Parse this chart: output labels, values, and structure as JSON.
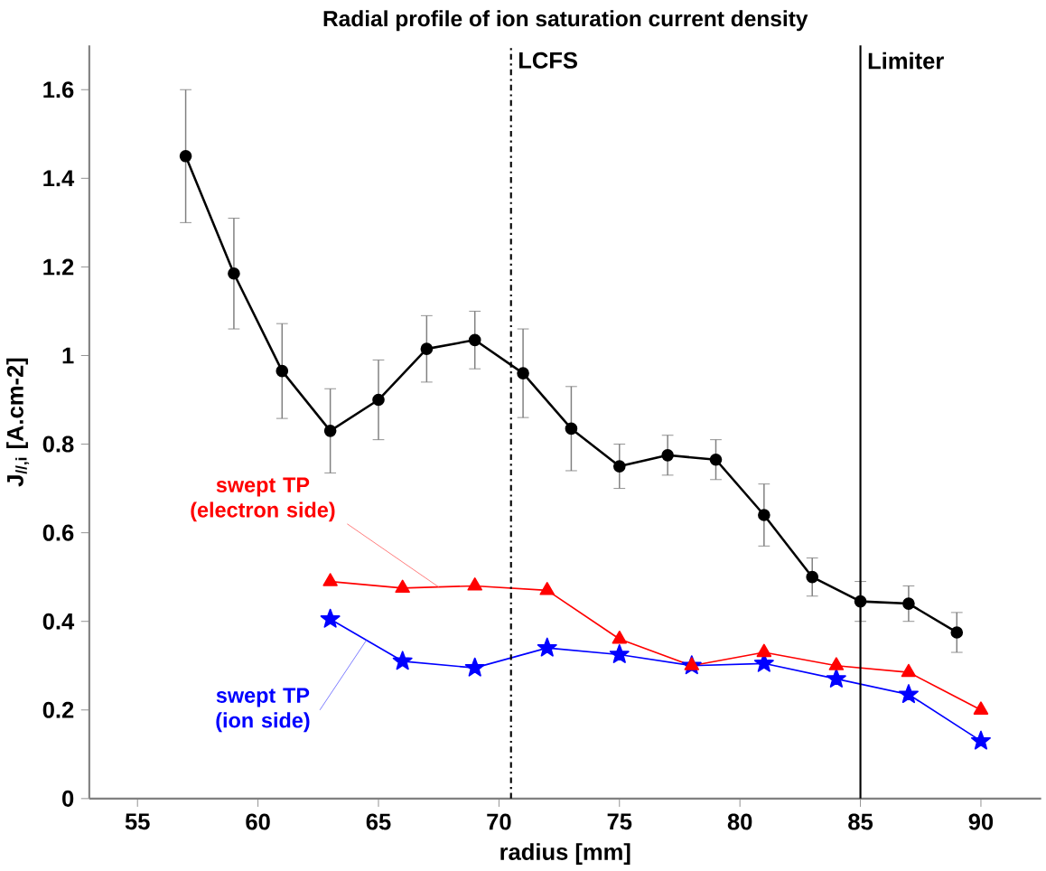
{
  "chart_data": {
    "type": "line",
    "title": "Radial profile of ion saturation current density",
    "xlabel": "radius [mm]",
    "ylabel": "J$_{//,i}$ [A.cm-2]",
    "xlim": [
      53,
      92.5
    ],
    "ylim": [
      0,
      1.7
    ],
    "xticks": [
      55,
      60,
      65,
      70,
      75,
      80,
      85,
      90
    ],
    "yticks": [
      0,
      0.2,
      0.4,
      0.6,
      0.8,
      1,
      1.2,
      1.4,
      1.6
    ],
    "grid": false,
    "legend": false,
    "series": [
      {
        "color": "#000000",
        "marker": "circle",
        "x": [
          57,
          59,
          61,
          63,
          65,
          67,
          69,
          71,
          73,
          75,
          77,
          79,
          81,
          83,
          85,
          87,
          89
        ],
        "values": [
          1.45,
          1.185,
          0.965,
          0.83,
          0.9,
          1.015,
          1.035,
          0.96,
          0.835,
          0.75,
          0.775,
          0.765,
          0.64,
          0.5,
          0.445,
          0.44,
          0.375
        ],
        "errors": [
          0.15,
          0.125,
          0.107,
          0.095,
          0.09,
          0.075,
          0.065,
          0.1,
          0.095,
          0.05,
          0.045,
          0.045,
          0.07,
          0.043,
          0.045,
          0.04,
          0.045
        ]
      },
      {
        "name": "swept TP (electron side)",
        "color": "#ff0000",
        "marker": "triangle",
        "x": [
          63,
          66,
          69,
          72,
          75,
          78,
          81,
          84,
          87,
          90
        ],
        "values": [
          0.49,
          0.475,
          0.48,
          0.47,
          0.36,
          0.3,
          0.33,
          0.3,
          0.285,
          0.2
        ]
      },
      {
        "name": "swept TP (ion side)",
        "color": "#0000ff",
        "marker": "star",
        "x": [
          63,
          66,
          69,
          72,
          75,
          78,
          81,
          84,
          87,
          90
        ],
        "values": [
          0.405,
          0.31,
          0.295,
          0.34,
          0.325,
          0.3,
          0.305,
          0.27,
          0.235,
          0.13
        ]
      }
    ],
    "ref_lines": [
      {
        "axis": "x",
        "value": 70.5,
        "label": "LCFS",
        "line_style": "dashdot"
      },
      {
        "axis": "x",
        "value": 85,
        "label": "Limiter",
        "line_style": "solid"
      }
    ]
  }
}
